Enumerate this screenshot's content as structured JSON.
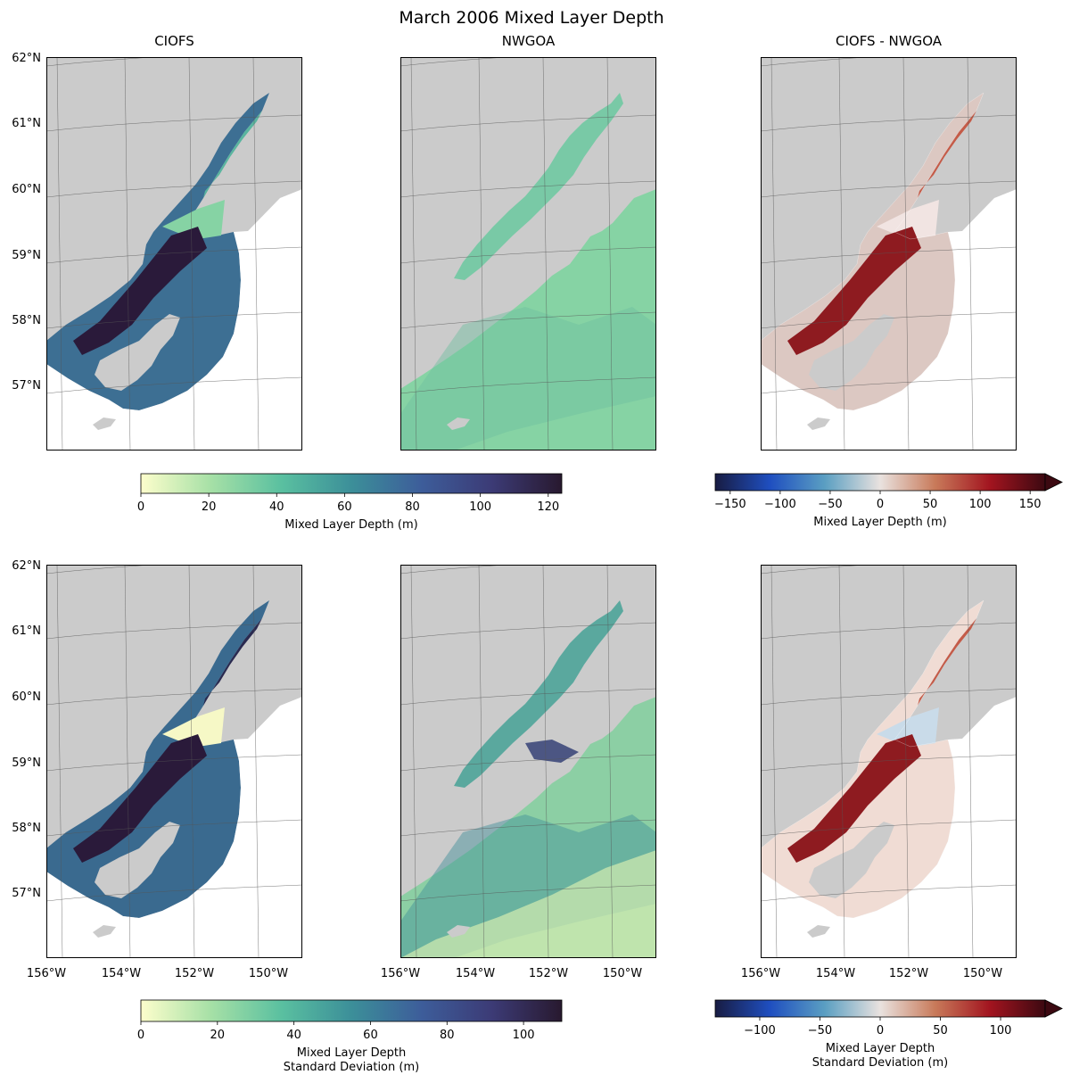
{
  "figure": {
    "title": "March 2006 Mixed Layer Depth",
    "column_titles": [
      "CIOFS",
      "NWGOA",
      "CIOFS - NWGOA"
    ],
    "colors": {
      "land": "#cbcbcb",
      "ocean_deep": "#2a1a3a",
      "ocean_mid": "#3f8f8f",
      "ocean_shallow": "#86d3a4",
      "ocean_pale": "#f4f7c4",
      "diff_red": "#8e1b20",
      "diff_blue": "#2166ac",
      "grid": "#555555"
    },
    "colormaps": {
      "deep": [
        "#fdfecc",
        "#a6e0a6",
        "#5ac0a0",
        "#3c8f99",
        "#3d5d9a",
        "#3c3b76",
        "#28192f"
      ],
      "balance": [
        "#181c43",
        "#1f4fc0",
        "#5b9fc2",
        "#e9e2df",
        "#c87a5a",
        "#a2141f",
        "#3c0911"
      ]
    }
  },
  "chart_data": [
    {
      "panel": "top-left",
      "type": "heatmap",
      "title": "CIOFS",
      "projection": "map",
      "ylabel_ticks": [
        "62°N",
        "61°N",
        "60°N",
        "59°N",
        "58°N",
        "57°N"
      ],
      "lat_values": [
        62,
        61,
        60,
        59,
        58,
        57
      ],
      "xlabel_ticks": [],
      "variable": "Mixed Layer Depth (m)"
    },
    {
      "panel": "top-middle",
      "type": "heatmap",
      "title": "NWGOA",
      "projection": "map",
      "ylabel_ticks": [],
      "xlabel_ticks": [],
      "variable": "Mixed Layer Depth (m)"
    },
    {
      "panel": "top-right",
      "type": "heatmap",
      "title": "CIOFS - NWGOA",
      "projection": "map",
      "ylabel_ticks": [],
      "xlabel_ticks": [],
      "variable": "Mixed Layer Depth (m)"
    },
    {
      "panel": "bottom-left",
      "type": "heatmap",
      "title": "",
      "projection": "map",
      "ylabel_ticks": [
        "62°N",
        "61°N",
        "60°N",
        "59°N",
        "58°N",
        "57°N"
      ],
      "lat_values": [
        62,
        61,
        60,
        59,
        58,
        57
      ],
      "xlabel_ticks": [
        "156°W",
        "154°W",
        "152°W",
        "150°W"
      ],
      "lon_values": [
        -156,
        -154,
        -152,
        -150
      ],
      "variable": "Mixed Layer Depth Standard Deviation (m)"
    },
    {
      "panel": "bottom-middle",
      "type": "heatmap",
      "title": "",
      "projection": "map",
      "ylabel_ticks": [],
      "xlabel_ticks": [
        "156°W",
        "154°W",
        "152°W",
        "150°W"
      ],
      "lon_values": [
        -156,
        -154,
        -152,
        -150
      ],
      "variable": "Mixed Layer Depth Standard Deviation (m)"
    },
    {
      "panel": "bottom-right",
      "type": "heatmap",
      "title": "",
      "projection": "map",
      "ylabel_ticks": [],
      "xlabel_ticks": [
        "156°W",
        "154°W",
        "152°W",
        "150°W"
      ],
      "lon_values": [
        -156,
        -154,
        -152,
        -150
      ],
      "variable": "Mixed Layer Depth Standard Deviation (m)"
    }
  ],
  "colorbars": [
    {
      "id": "cb-top-left",
      "cmap": "deep",
      "vmin": 0,
      "vmax": 124,
      "ticks": [
        0,
        20,
        40,
        60,
        80,
        100,
        120
      ],
      "tick_labels": [
        "0",
        "20",
        "40",
        "60",
        "80",
        "100",
        "120"
      ],
      "label": "Mixed Layer Depth (m)",
      "label_line2": "",
      "extend": "neither"
    },
    {
      "id": "cb-top-right",
      "cmap": "balance",
      "vmin": -165,
      "vmax": 165,
      "ticks": [
        -150,
        -100,
        -50,
        0,
        50,
        100,
        150
      ],
      "tick_labels": [
        "−150",
        "−100",
        "−50",
        "0",
        "50",
        "100",
        "150"
      ],
      "label": "Mixed Layer Depth (m)",
      "label_line2": "",
      "extend": "max"
    },
    {
      "id": "cb-bottom-left",
      "cmap": "deep",
      "vmin": 0,
      "vmax": 110,
      "ticks": [
        0,
        20,
        40,
        60,
        80,
        100
      ],
      "tick_labels": [
        "0",
        "20",
        "40",
        "60",
        "80",
        "100"
      ],
      "label": "Mixed Layer Depth",
      "label_line2": "Standard Deviation (m)",
      "extend": "neither"
    },
    {
      "id": "cb-bottom-right",
      "cmap": "balance",
      "vmin": -137,
      "vmax": 137,
      "ticks": [
        -100,
        -50,
        0,
        50,
        100
      ],
      "tick_labels": [
        "−100",
        "−50",
        "0",
        "50",
        "100"
      ],
      "label": "Mixed Layer Depth",
      "label_line2": "Standard Deviation (m)",
      "extend": "max"
    }
  ]
}
